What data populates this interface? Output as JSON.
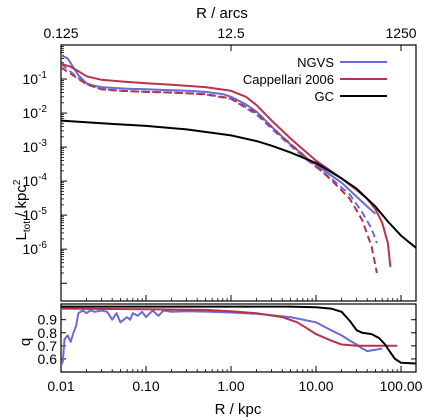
{
  "chart_data": {
    "type": "line",
    "x_scale": "log",
    "top_axis": {
      "label": "R / arcs",
      "ticks": [
        0.125,
        12.5,
        1250
      ],
      "tick_labels": [
        "0.125",
        "12.5",
        "1250"
      ],
      "arcsec_per_kpc": 12.5
    },
    "panels": [
      {
        "id": "luminosity",
        "ylabel": "L_tot / kpc^2",
        "ylabel_main": "L",
        "ylabel_sub": "tot",
        "ylabel_rest": " / kpc",
        "ylabel_sup": "2",
        "y_scale": "log",
        "xlim": [
          0.01,
          150
        ],
        "ylim": [
          3e-08,
          1
        ],
        "yticks": [
          {
            "value": 0.1,
            "base": "10",
            "exp": "-1"
          },
          {
            "value": 0.01,
            "base": "10",
            "exp": "-2"
          },
          {
            "value": 0.001,
            "base": "10",
            "exp": "-3"
          },
          {
            "value": 0.0001,
            "base": "10",
            "exp": "-4"
          },
          {
            "value": 1e-05,
            "base": "10",
            "exp": "-5"
          },
          {
            "value": 1e-06,
            "base": "10",
            "exp": "-6"
          }
        ],
        "legend": {
          "position": "top-right"
        },
        "series": [
          {
            "name": "NGVS",
            "color": "#6a6ad8",
            "dash": false,
            "legend": true,
            "points": [
              [
                0.01,
                0.5
              ],
              [
                0.012,
                0.4
              ],
              [
                0.014,
                0.22
              ],
              [
                0.016,
                0.13
              ],
              [
                0.02,
                0.075
              ],
              [
                0.025,
                0.063
              ],
              [
                0.03,
                0.058
              ],
              [
                0.04,
                0.055
              ],
              [
                0.06,
                0.052
              ],
              [
                0.1,
                0.05
              ],
              [
                0.15,
                0.048
              ],
              [
                0.2,
                0.047
              ],
              [
                0.3,
                0.045
              ],
              [
                0.5,
                0.042
              ],
              [
                0.8,
                0.036
              ],
              [
                1.0,
                0.03
              ],
              [
                1.5,
                0.018
              ],
              [
                2.0,
                0.011
              ],
              [
                3.0,
                0.004
              ],
              [
                5.0,
                0.0012
              ],
              [
                8.0,
                0.00045
              ],
              [
                12.0,
                0.00022
              ],
              [
                20.0,
                9e-05
              ],
              [
                30.0,
                3.5e-05
              ],
              [
                40.0,
                1.8e-05
              ],
              [
                50.0,
                1.1e-05
              ]
            ]
          },
          {
            "name": "NGVS (dashed)",
            "color": "#6a6ad8",
            "dash": true,
            "legend": false,
            "points": [
              [
                0.01,
                0.28
              ],
              [
                0.015,
                0.12
              ],
              [
                0.02,
                0.07
              ],
              [
                0.03,
                0.05
              ],
              [
                0.05,
                0.045
              ],
              [
                0.1,
                0.042
              ],
              [
                0.2,
                0.04
              ],
              [
                0.3,
                0.038
              ],
              [
                0.5,
                0.035
              ],
              [
                1.0,
                0.026
              ],
              [
                2.0,
                0.009
              ],
              [
                4.0,
                0.0018
              ],
              [
                8.0,
                0.0004
              ],
              [
                15.0,
                0.00012
              ],
              [
                25.0,
                4e-05
              ],
              [
                35.0,
                1.2e-05
              ],
              [
                45.0,
                4e-06
              ],
              [
                52.0,
                1.5e-06
              ]
            ]
          },
          {
            "name": "Cappellari 2006",
            "color": "#b8334a",
            "dash": false,
            "legend": true,
            "points": [
              [
                0.01,
                0.28
              ],
              [
                0.013,
                0.23
              ],
              [
                0.016,
                0.17
              ],
              [
                0.02,
                0.12
              ],
              [
                0.03,
                0.095
              ],
              [
                0.05,
                0.085
              ],
              [
                0.1,
                0.075
              ],
              [
                0.2,
                0.068
              ],
              [
                0.5,
                0.058
              ],
              [
                1.0,
                0.045
              ],
              [
                1.5,
                0.03
              ],
              [
                2.0,
                0.017
              ],
              [
                3.0,
                0.006
              ],
              [
                5.0,
                0.0018
              ],
              [
                10.0,
                0.0004
              ],
              [
                20.0,
                0.00012
              ],
              [
                30.0,
                5.5e-05
              ],
              [
                40.0,
                3e-05
              ],
              [
                50.0,
                1.5e-05
              ],
              [
                60.0,
                6e-06
              ],
              [
                70.0,
                1.5e-06
              ],
              [
                75.0,
                3e-07
              ]
            ]
          },
          {
            "name": "Cappellari 2006 (dashed)",
            "color": "#b8334a",
            "dash": true,
            "legend": false,
            "points": [
              [
                0.01,
                0.22
              ],
              [
                0.02,
                0.07
              ],
              [
                0.03,
                0.05
              ],
              [
                0.05,
                0.045
              ],
              [
                0.1,
                0.042
              ],
              [
                0.2,
                0.04
              ],
              [
                0.5,
                0.036
              ],
              [
                1.0,
                0.027
              ],
              [
                2.0,
                0.01
              ],
              [
                4.0,
                0.002
              ],
              [
                8.0,
                0.00045
              ],
              [
                15.0,
                0.00011
              ],
              [
                25.0,
                3e-05
              ],
              [
                35.0,
                7e-06
              ],
              [
                45.0,
                1.2e-06
              ],
              [
                52.0,
                2e-07
              ]
            ]
          },
          {
            "name": "GC",
            "color": "#000000",
            "dash": false,
            "legend": true,
            "points": [
              [
                0.01,
                0.006
              ],
              [
                0.03,
                0.005
              ],
              [
                0.1,
                0.0042
              ],
              [
                0.3,
                0.0033
              ],
              [
                1.0,
                0.0022
              ],
              [
                2.0,
                0.0015
              ],
              [
                3.0,
                0.0011
              ],
              [
                5.0,
                0.0007
              ],
              [
                10.0,
                0.00034
              ],
              [
                20.0,
                0.00012
              ],
              [
                30.0,
                6e-05
              ],
              [
                50.0,
                1.8e-05
              ],
              [
                70.0,
                6.5e-06
              ],
              [
                100.0,
                2.5e-06
              ],
              [
                150.0,
                1.1e-06
              ]
            ]
          }
        ]
      },
      {
        "id": "flattening",
        "ylabel": "q",
        "y_scale": "linear",
        "xlim": [
          0.01,
          150
        ],
        "ylim": [
          0.5,
          1.02
        ],
        "yticks": [
          {
            "value": 0.9,
            "label": "0.9"
          },
          {
            "value": 0.8,
            "label": "0.8"
          },
          {
            "value": 0.7,
            "label": "0.7"
          },
          {
            "value": 0.6,
            "label": "0.6"
          }
        ],
        "xticks": [
          {
            "value": 0.01,
            "label": "0.01"
          },
          {
            "value": 0.1,
            "label": "0.10"
          },
          {
            "value": 1.0,
            "label": "1.00"
          },
          {
            "value": 10.0,
            "label": "10.00"
          },
          {
            "value": 100.0,
            "label": "100.00"
          }
        ],
        "xlabel": "R / kpc",
        "series": [
          {
            "name": "NGVS",
            "color": "#6a6ad8",
            "points": [
              [
                0.01,
                0.55
              ],
              [
                0.0105,
                0.58
              ],
              [
                0.011,
                0.75
              ],
              [
                0.012,
                0.78
              ],
              [
                0.013,
                0.73
              ],
              [
                0.014,
                0.8
              ],
              [
                0.015,
                0.85
              ],
              [
                0.016,
                0.95
              ],
              [
                0.018,
                0.97
              ],
              [
                0.02,
                0.95
              ],
              [
                0.022,
                0.97
              ],
              [
                0.025,
                0.96
              ],
              [
                0.03,
                0.97
              ],
              [
                0.035,
                0.96
              ],
              [
                0.04,
                0.9
              ],
              [
                0.045,
                0.95
              ],
              [
                0.05,
                0.88
              ],
              [
                0.06,
                0.92
              ],
              [
                0.065,
                0.9
              ],
              [
                0.07,
                0.95
              ],
              [
                0.08,
                0.93
              ],
              [
                0.09,
                0.96
              ],
              [
                0.1,
                0.92
              ],
              [
                0.12,
                0.97
              ],
              [
                0.14,
                0.93
              ],
              [
                0.16,
                0.97
              ],
              [
                0.2,
                0.96
              ],
              [
                0.3,
                0.965
              ],
              [
                0.5,
                0.962
              ],
              [
                1.0,
                0.955
              ],
              [
                2.0,
                0.945
              ],
              [
                5.0,
                0.92
              ],
              [
                10.0,
                0.88
              ],
              [
                15.0,
                0.82
              ],
              [
                20.0,
                0.78
              ],
              [
                25.0,
                0.74
              ],
              [
                30.0,
                0.71
              ],
              [
                35.0,
                0.68
              ],
              [
                40.0,
                0.66
              ],
              [
                50.0,
                0.67
              ],
              [
                60.0,
                0.68
              ]
            ]
          },
          {
            "name": "Cappellari 2006",
            "color": "#b8334a",
            "points": [
              [
                0.01,
                0.985
              ],
              [
                0.1,
                0.98
              ],
              [
                0.5,
                0.975
              ],
              [
                1.0,
                0.965
              ],
              [
                2.0,
                0.95
              ],
              [
                4.0,
                0.92
              ],
              [
                6.0,
                0.88
              ],
              [
                8.0,
                0.83
              ],
              [
                10.0,
                0.79
              ],
              [
                15.0,
                0.74
              ],
              [
                20.0,
                0.71
              ],
              [
                30.0,
                0.7
              ],
              [
                50.0,
                0.7
              ],
              [
                70.0,
                0.7
              ],
              [
                90.0,
                0.7
              ]
            ]
          },
          {
            "name": "GC",
            "color": "#000000",
            "points": [
              [
                0.01,
                1.0
              ],
              [
                0.1,
                1.0
              ],
              [
                1.0,
                1.0
              ],
              [
                5.0,
                1.0
              ],
              [
                10.0,
                0.995
              ],
              [
                15.0,
                0.985
              ],
              [
                20.0,
                0.96
              ],
              [
                25.0,
                0.89
              ],
              [
                30.0,
                0.82
              ],
              [
                35.0,
                0.8
              ],
              [
                45.0,
                0.79
              ],
              [
                55.0,
                0.76
              ],
              [
                65.0,
                0.71
              ],
              [
                75.0,
                0.65
              ],
              [
                85.0,
                0.6
              ],
              [
                100.0,
                0.57
              ],
              [
                150.0,
                0.565
              ]
            ]
          }
        ]
      }
    ]
  }
}
